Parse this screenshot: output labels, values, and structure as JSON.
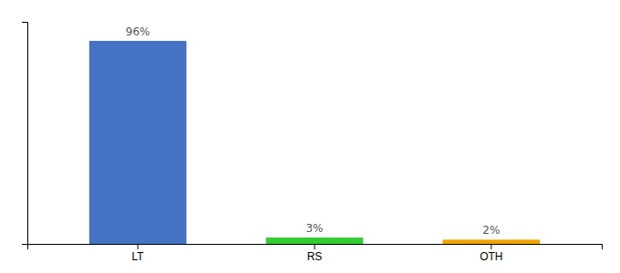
{
  "chart_data": {
    "type": "bar",
    "categories": [
      "LT",
      "RS",
      "OTH"
    ],
    "values": [
      96,
      3,
      2
    ],
    "value_labels": [
      "96%",
      "3%",
      "2%"
    ],
    "data_labels": true,
    "colors": [
      "#4472c4",
      "#33cc33",
      "#f0a500"
    ],
    "ylim": [
      0,
      105
    ],
    "yticks": [],
    "tick_labels": "x"
  }
}
